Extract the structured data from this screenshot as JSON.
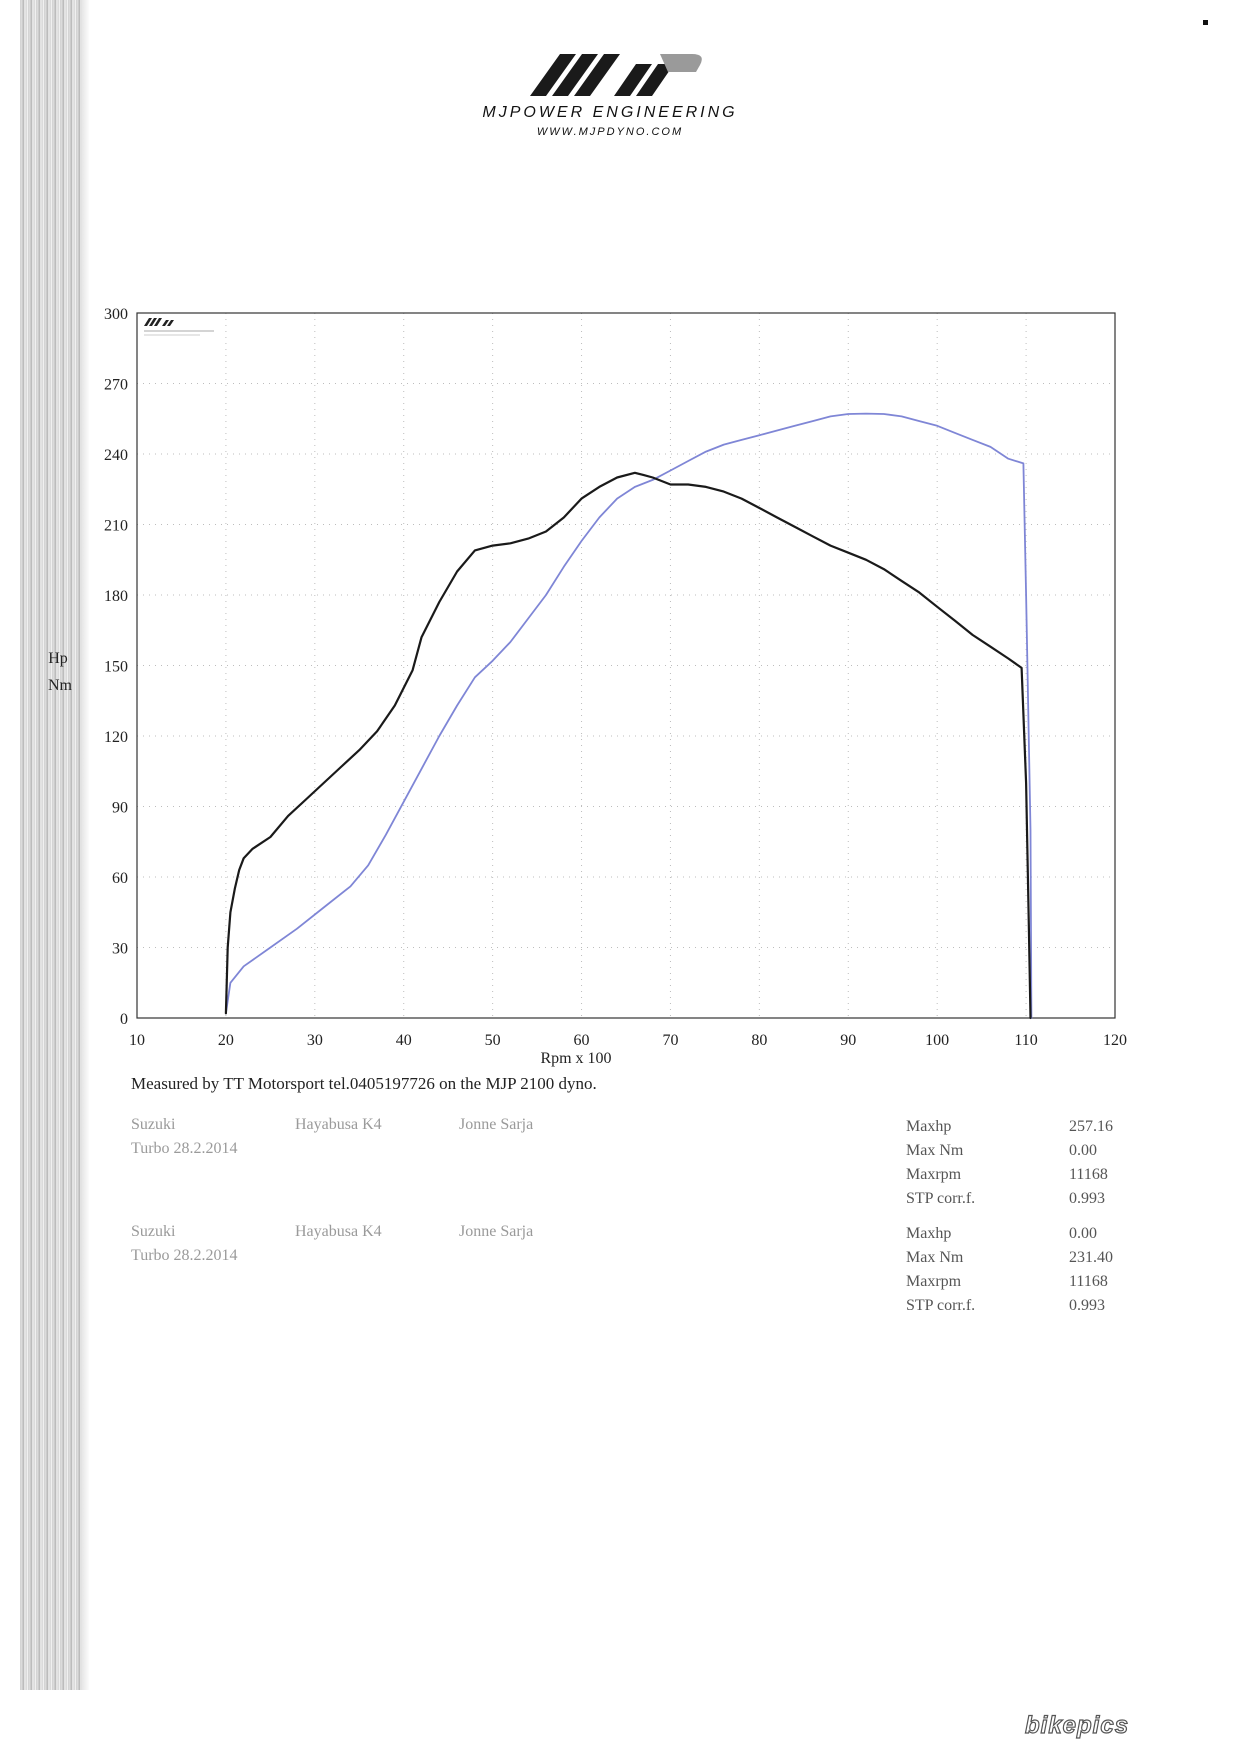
{
  "header": {
    "brand": "MJPOWER ENGINEERING",
    "url": "WWW.MJPDYNO.COM",
    "logo_icon": "mjp-logo-stripes"
  },
  "measured_note": "Measured by TT Motorsport tel.0405197726 on the MJP 2100 dyno.",
  "runs": [
    {
      "make": "Suzuki",
      "model": "Hayabusa K4",
      "driver": "Jonne Sarja",
      "note": "Turbo 28.2.2014",
      "stats": [
        {
          "label": "Maxhp",
          "value": "257.16"
        },
        {
          "label": "Max Nm",
          "value": "0.00"
        },
        {
          "label": "Maxrpm",
          "value": "11168"
        },
        {
          "label": "STP corr.f.",
          "value": "0.993"
        }
      ]
    },
    {
      "make": "Suzuki",
      "model": "Hayabusa K4",
      "driver": "Jonne Sarja",
      "note": "Turbo 28.2.2014",
      "stats": [
        {
          "label": "Maxhp",
          "value": "0.00"
        },
        {
          "label": "Max Nm",
          "value": "231.40"
        },
        {
          "label": "Maxrpm",
          "value": "11168"
        },
        {
          "label": "STP corr.f.",
          "value": "0.993"
        }
      ]
    }
  ],
  "watermark": "bikepics",
  "chart_data": {
    "type": "line",
    "title": "",
    "xlabel": "Rpm x 100",
    "ylabel": [
      "Hp",
      "Nm"
    ],
    "xlim": [
      10,
      120
    ],
    "ylim": [
      0,
      300
    ],
    "xticks": [
      10,
      20,
      30,
      40,
      50,
      60,
      70,
      80,
      90,
      100,
      110,
      120
    ],
    "yticks": [
      0,
      30,
      60,
      90,
      120,
      150,
      180,
      210,
      240,
      270,
      300
    ],
    "grid": true,
    "colors": {
      "power": "#7f86d6",
      "torque": "#1a1a1a",
      "axis": "#333333",
      "grid": "#bdbdbd"
    },
    "series": [
      {
        "key": "power",
        "x": [
          20,
          20.5,
          22,
          25,
          28,
          31,
          34,
          36,
          38,
          40,
          42,
          44,
          46,
          48,
          50,
          52,
          54,
          56,
          58,
          60,
          62,
          64,
          66,
          68,
          70,
          72,
          74,
          76,
          78,
          80,
          82,
          84,
          86,
          88,
          90,
          92,
          94,
          96,
          98,
          100,
          102,
          104,
          106,
          108,
          109.7,
          110,
          110.5,
          110.6
        ],
        "y": [
          2,
          15,
          22,
          30,
          38,
          47,
          56,
          65,
          78,
          92,
          106,
          120,
          133,
          145,
          152,
          160,
          170,
          180,
          192,
          203,
          213,
          221,
          226,
          229,
          233,
          237,
          241,
          244,
          246,
          248,
          250,
          252,
          254,
          256,
          257,
          257.2,
          257,
          256,
          254,
          252,
          249,
          246,
          243,
          238,
          236,
          180,
          80,
          0
        ]
      },
      {
        "key": "torque",
        "x": [
          20,
          20.2,
          20.5,
          21,
          21.5,
          22,
          23,
          25,
          27,
          29,
          31,
          33,
          35,
          37,
          39,
          41,
          42,
          44,
          46,
          48,
          50,
          52,
          54,
          56,
          58,
          60,
          62,
          64,
          66,
          67,
          68,
          70,
          72,
          74,
          76,
          78,
          80,
          82,
          84,
          86,
          88,
          90,
          92,
          94,
          96,
          98,
          100,
          102,
          104,
          106,
          108,
          109.5,
          110,
          110.3,
          110.5
        ],
        "y": [
          2,
          30,
          45,
          55,
          63,
          68,
          72,
          77,
          86,
          93,
          100,
          107,
          114,
          122,
          133,
          148,
          162,
          177,
          190,
          199,
          201,
          202,
          204,
          207,
          213,
          221,
          226,
          230,
          232,
          231,
          230,
          227,
          227,
          226,
          224,
          221,
          217,
          213,
          209,
          205,
          201,
          198,
          195,
          191,
          186,
          181,
          175,
          169,
          163,
          158,
          153,
          149,
          100,
          40,
          0
        ]
      }
    ]
  }
}
